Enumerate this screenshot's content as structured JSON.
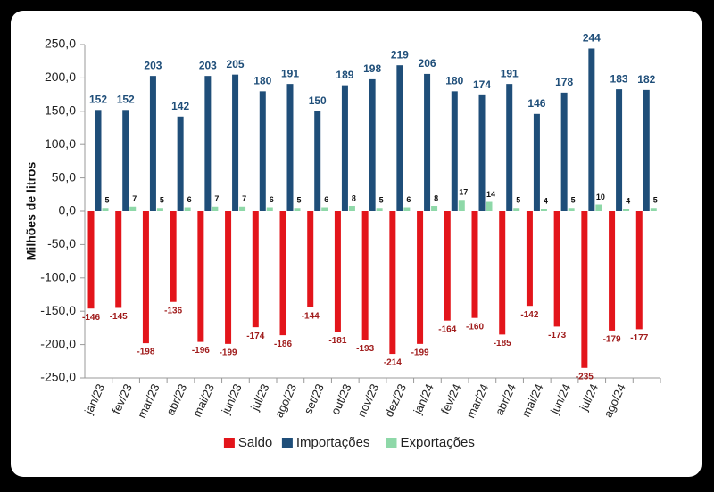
{
  "chart_data": {
    "type": "bar",
    "y_label": "Milhões de litros",
    "categories": [
      "jan/23",
      "fev/23",
      "mar/23",
      "abr/23",
      "mai/23",
      "jun/23",
      "jul/23",
      "ago/23",
      "set/23",
      "out/23",
      "nov/23",
      "dez/23",
      "jan/24",
      "fev/24",
      "mar/24",
      "abr/24",
      "mai/24",
      "jun/24",
      "jul/24",
      "ago/24",
      null
    ],
    "series": [
      {
        "name": "Saldo",
        "color": "#e3151b",
        "label_color": "#a01c1c",
        "values": [
          -146,
          -145,
          -198,
          -136,
          -196,
          -199,
          -174,
          -186,
          -144,
          -181,
          -193,
          -214,
          -199,
          -164,
          -160,
          -185,
          -142,
          -173,
          -235,
          -179,
          -177
        ]
      },
      {
        "name": "Importações",
        "color": "#1f4e79",
        "label_color": "#1f4e79",
        "values": [
          152,
          152,
          203,
          142,
          203,
          205,
          180,
          191,
          150,
          189,
          198,
          219,
          206,
          180,
          174,
          191,
          146,
          178,
          244,
          183,
          182
        ]
      },
      {
        "name": "Exportações",
        "color": "#8ed8a8",
        "label_color": "#111111",
        "values": [
          5,
          7,
          5,
          6,
          7,
          7,
          6,
          5,
          6,
          8,
          5,
          6,
          8,
          17,
          14,
          5,
          4,
          5,
          10,
          4,
          5
        ]
      }
    ],
    "ylim": [
      -250,
      250
    ],
    "yticks": [
      {
        "value": -250,
        "label": "-250,0"
      },
      {
        "value": -200,
        "label": "-200,0"
      },
      {
        "value": -150,
        "label": "-150,0"
      },
      {
        "value": -100,
        "label": "-100,0"
      },
      {
        "value": -50,
        "label": "-50,0"
      },
      {
        "value": 0,
        "label": "0,0"
      },
      {
        "value": 50,
        "label": "50,0"
      },
      {
        "value": 100,
        "label": "100,0"
      },
      {
        "value": 150,
        "label": "150,0"
      },
      {
        "value": 200,
        "label": "200,0"
      },
      {
        "value": 250,
        "label": "250,0"
      }
    ],
    "grid": false,
    "legend": "bottom"
  }
}
